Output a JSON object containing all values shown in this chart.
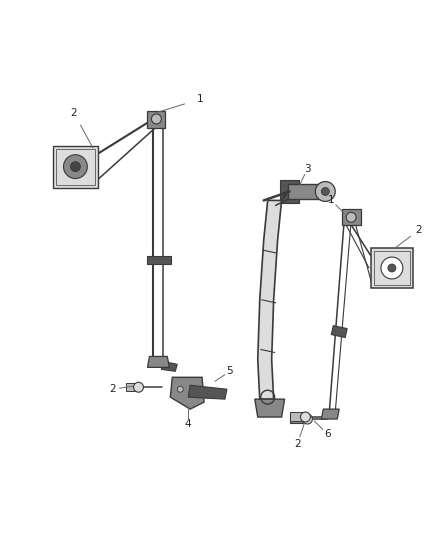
{
  "bg_color": "#ffffff",
  "line_color": "#3a3a3a",
  "fig_width": 4.38,
  "fig_height": 5.33,
  "dpi": 100,
  "lw_belt": 1.5,
  "lw_thin": 0.8,
  "lw_med": 1.1,
  "gray_dark": "#555555",
  "gray_mid": "#888888",
  "gray_light": "#bbbbbb",
  "gray_lighter": "#dddddd",
  "label_fs": 7.5,
  "label_color": "#222222"
}
